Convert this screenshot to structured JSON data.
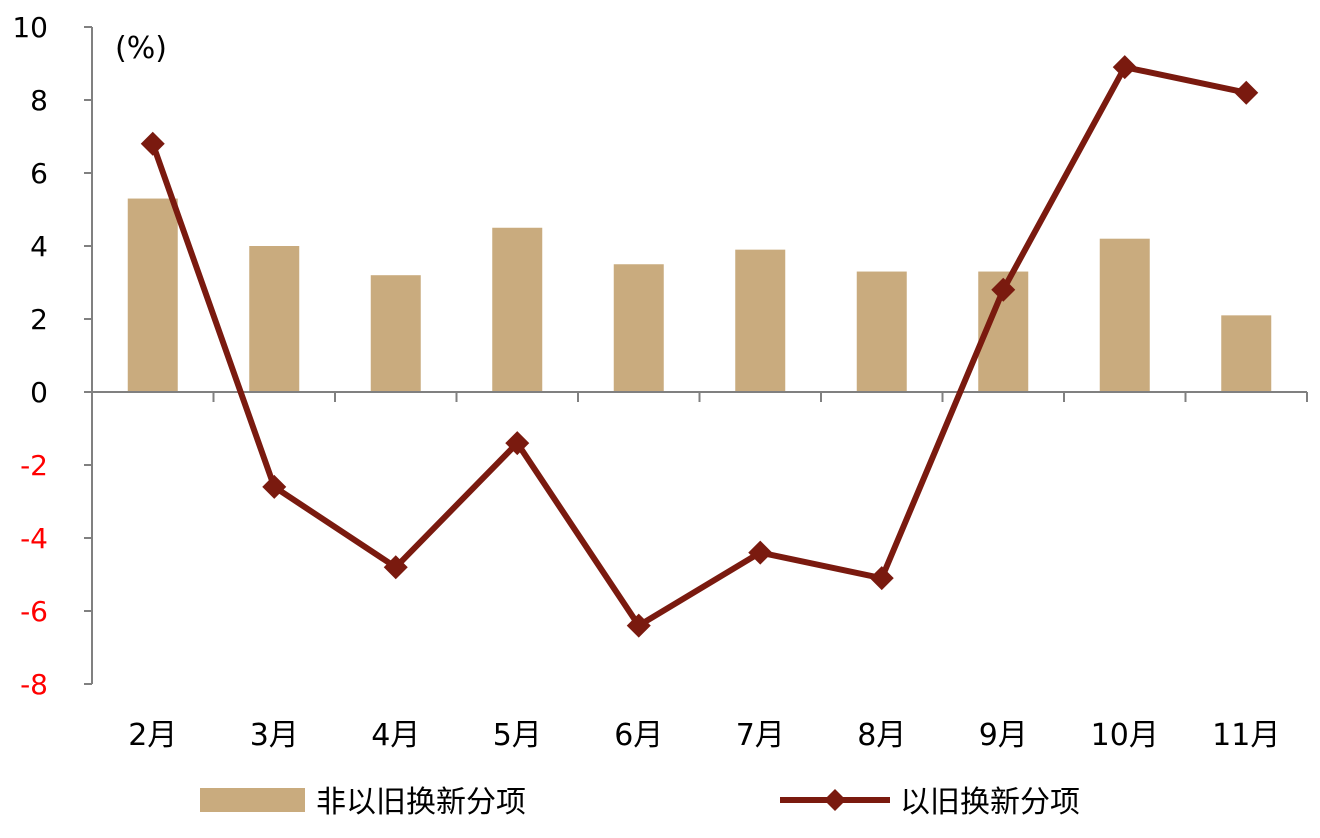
{
  "chart_data": {
    "type": "bar",
    "unit_label": "(%)",
    "categories": [
      "2月",
      "3月",
      "4月",
      "5月",
      "6月",
      "7月",
      "8月",
      "9月",
      "10月",
      "11月"
    ],
    "series": [
      {
        "name": "非以旧换新分项",
        "type": "bar",
        "color": "#C9AB7E",
        "values": [
          5.3,
          4.0,
          3.2,
          4.5,
          3.5,
          3.9,
          3.3,
          3.3,
          4.2,
          2.1
        ]
      },
      {
        "name": "以旧换新分项",
        "type": "line",
        "marker": "diamond",
        "color": "#7A1A0F",
        "values": [
          6.8,
          -2.6,
          -4.8,
          -1.4,
          -6.4,
          -4.4,
          -5.1,
          2.8,
          8.9,
          8.2
        ]
      }
    ],
    "ylim": [
      -8,
      10
    ],
    "yticks": [
      10,
      8,
      6,
      4,
      2,
      0,
      -2,
      -4,
      -6,
      -8
    ],
    "negative_tick_color": "#FF0000",
    "positive_tick_color": "#000000",
    "axis_color": "#808080",
    "grid": false,
    "legend_position": "bottom"
  }
}
